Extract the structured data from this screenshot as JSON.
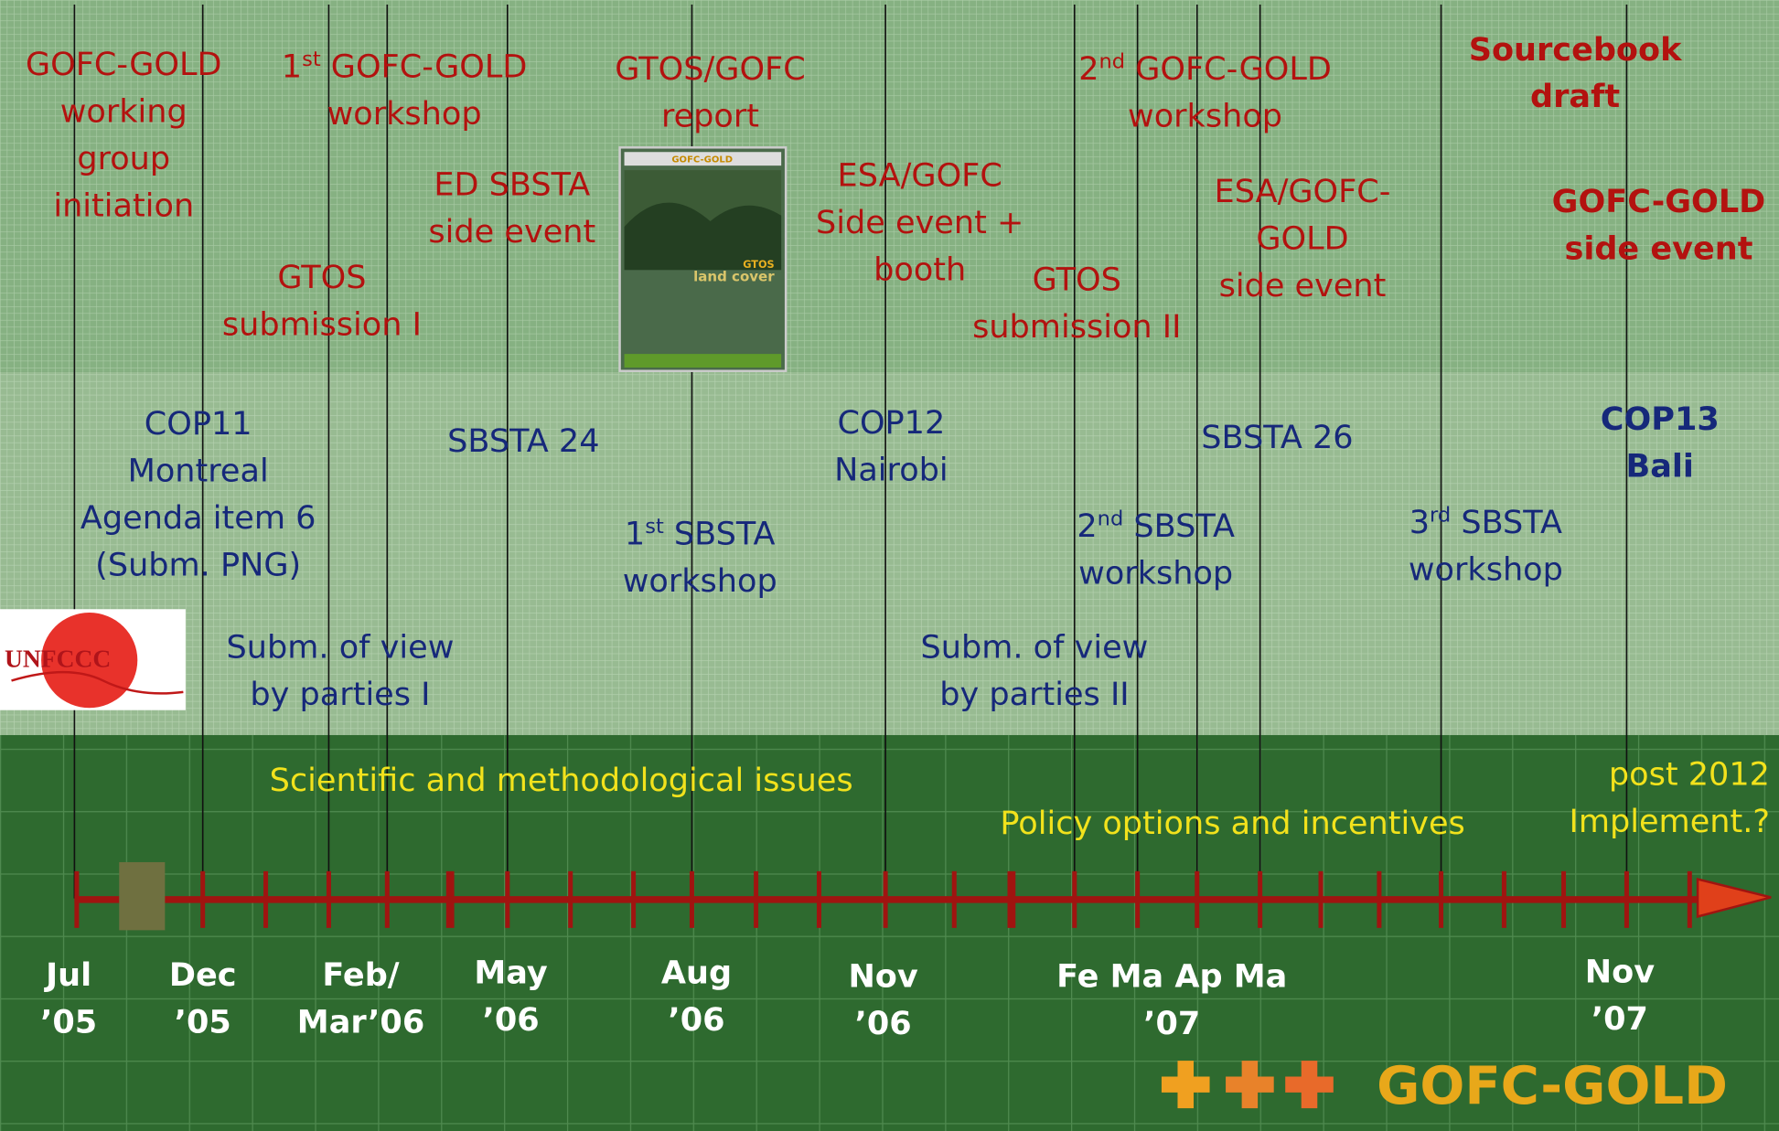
{
  "events_top": [
    {
      "lines": [
        "GOFC-GOLD",
        "working",
        "group",
        "initiation"
      ]
    },
    {
      "lines": [
        {
          "pre": "1",
          "sup": "st",
          "post": " GOFC-GOLD"
        },
        "workshop"
      ]
    },
    {
      "lines": [
        "GTOS/GOFC",
        "report"
      ]
    },
    {
      "lines": [
        "ED SBSTA",
        "side event"
      ]
    },
    {
      "lines": [
        "GTOS",
        "submission I"
      ]
    },
    {
      "lines": [
        {
          "pre": "2",
          "sup": "nd",
          "post": " GOFC-GOLD"
        },
        "workshop"
      ]
    },
    {
      "lines": [
        "ESA/GOFC",
        "Side event +",
        "booth"
      ]
    },
    {
      "lines": [
        "ESA/GOFC-",
        "GOLD",
        "side event"
      ]
    },
    {
      "lines": [
        "GTOS",
        "submission II"
      ]
    },
    {
      "lines": [
        "Sourcebook",
        "draft"
      ]
    },
    {
      "lines": [
        "GOFC-GOLD",
        "side event"
      ]
    }
  ],
  "events_middle": [
    {
      "lines": [
        "COP11",
        "Montreal",
        "Agenda item 6",
        "(Subm. PNG)"
      ]
    },
    {
      "lines": [
        "SBSTA 24"
      ]
    },
    {
      "lines": [
        {
          "pre": "1",
          "sup": "st",
          "post": " SBSTA"
        },
        "workshop"
      ]
    },
    {
      "lines": [
        "COP12",
        "Nairobi"
      ]
    },
    {
      "lines": [
        "SBSTA 26"
      ]
    },
    {
      "lines": [
        {
          "pre": "2",
          "sup": "nd",
          "post": " SBSTA"
        },
        "workshop"
      ]
    },
    {
      "lines": [
        {
          "pre": "3",
          "sup": "rd",
          "post": " SBSTA"
        },
        "workshop"
      ]
    },
    {
      "lines": [
        "COP13",
        "Bali"
      ]
    },
    {
      "lines": [
        "Subm. of view",
        "by parties I"
      ]
    },
    {
      "lines": [
        "Subm. of view",
        "by parties II"
      ]
    }
  ],
  "themes": [
    {
      "lines": [
        "Scientific and methodological issues"
      ]
    },
    {
      "lines": [
        "Policy options and incentives"
      ]
    },
    {
      "lines": [
        "post 2012",
        "Implement.?"
      ]
    }
  ],
  "dates": [
    {
      "lines": [
        "Jul",
        "’05"
      ]
    },
    {
      "lines": [
        "Dec",
        "’05"
      ]
    },
    {
      "lines": [
        "Feb/",
        "Mar’06"
      ]
    },
    {
      "lines": [
        "May",
        "’06"
      ]
    },
    {
      "lines": [
        "Aug",
        "’06"
      ]
    },
    {
      "lines": [
        "Nov",
        "’06"
      ]
    },
    {
      "lines": [
        "Fe Ma Ap Ma",
        "’07"
      ]
    },
    {
      "lines": [
        "Nov",
        "’07"
      ]
    }
  ],
  "logos": {
    "unfccc": "UNFCCC",
    "cover_header": "GOFC-GOLD",
    "cover_title": "GTOS",
    "cover_subtitle": "land cover",
    "gofc_gold": "GOFC-GOLD"
  }
}
